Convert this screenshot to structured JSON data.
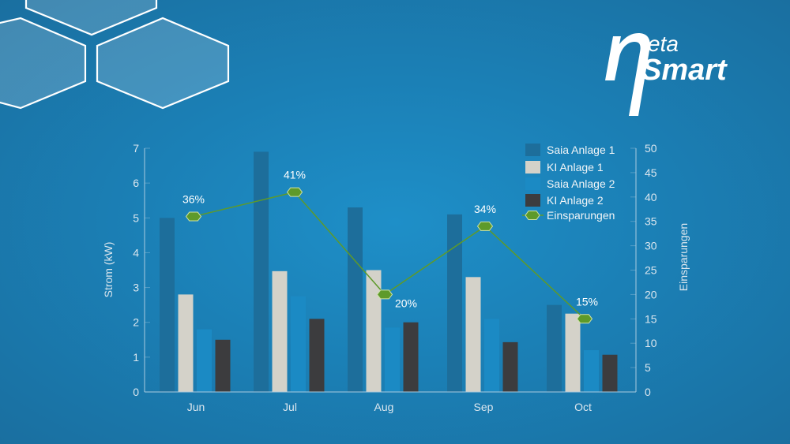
{
  "brand": {
    "symbol": "η",
    "eta": "eta",
    "smart": "Smart"
  },
  "colors": {
    "saia1": "#1d6e9b",
    "ki1": "#d4d2c9",
    "saia2": "#1b8ac4",
    "ki2": "#3c3c3e",
    "savings": "#5e9a2a",
    "axis": "#a9cbe0"
  },
  "chart_data": {
    "type": "bar",
    "title": "",
    "categories": [
      "Jun",
      "Jul",
      "Aug",
      "Sep",
      "Oct"
    ],
    "series": [
      {
        "name": "Saia Anlage 1",
        "type": "bar",
        "axis": "left",
        "values": [
          5.0,
          6.9,
          5.3,
          5.1,
          2.5
        ]
      },
      {
        "name": "KI Anlage 1",
        "type": "bar",
        "axis": "left",
        "values": [
          2.8,
          3.47,
          3.5,
          3.3,
          2.25
        ]
      },
      {
        "name": "Saia Anlage 2",
        "type": "bar",
        "axis": "left",
        "values": [
          1.8,
          2.75,
          1.85,
          2.1,
          1.2
        ]
      },
      {
        "name": "KI Anlage 2",
        "type": "bar",
        "axis": "left",
        "values": [
          1.5,
          2.1,
          2.0,
          1.43,
          1.07
        ]
      },
      {
        "name": "Einsparungen",
        "type": "line",
        "axis": "right",
        "values": [
          36,
          41,
          20,
          34,
          15
        ],
        "labels": [
          "36%",
          "41%",
          "20%",
          "34%",
          "15%"
        ]
      }
    ],
    "xlabel": "",
    "ylabel": "Strom (kW)",
    "y2label": "Einsparungen",
    "ylim": [
      0,
      7
    ],
    "y2lim": [
      0,
      50
    ],
    "yticks": [
      "0",
      "1",
      "2",
      "3",
      "4",
      "5",
      "6",
      "7"
    ],
    "y2ticks": [
      "0",
      "5",
      "10",
      "15",
      "20",
      "25",
      "30",
      "35",
      "40",
      "45",
      "50"
    ],
    "grid": false,
    "legend_position": "top-right-inside"
  }
}
